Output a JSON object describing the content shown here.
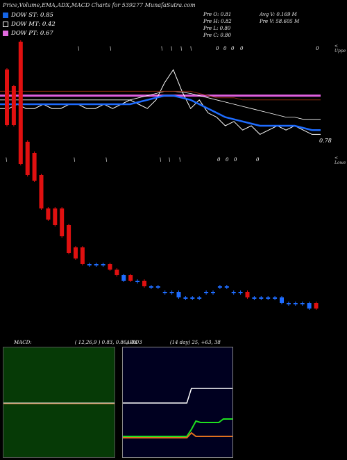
{
  "header": {
    "title": "Price,Volume,EMA,ADX,MACD Charts for 539277 MunafaSutra.com"
  },
  "legend": [
    {
      "label": "DOW ST: 0.85",
      "color": "#1565e6"
    },
    {
      "label": "DOW MT: 0.42",
      "color": "#000000"
    },
    {
      "label": "DOW PT: 0.67",
      "color": "#e26be0"
    }
  ],
  "prev": {
    "open": "Pre   O: 0.81",
    "high": "Pre   H: 0.82",
    "low": "Pre   L: 0.80",
    "close": "Pre   C: 0.80"
  },
  "volume_info": {
    "avg": "Avg V: 0.169 M",
    "prev": "Pre   V: 58.605 M"
  },
  "tags": {
    "upper": "< Uppe",
    "lower": "< Lowe"
  },
  "markers": {
    "top": [
      "\\",
      "\\",
      "\\",
      "\\",
      "\\",
      "\\",
      "0",
      "0",
      "0",
      "0",
      "0"
    ],
    "mid": [
      "\\",
      "\\",
      "\\",
      "\\",
      "\\",
      "\\",
      "0",
      "0",
      "0",
      "0"
    ]
  },
  "price_label": "0.78",
  "colors": {
    "blue": "#1e6cff",
    "pink": "#e060e0",
    "brown": "#8b2a10",
    "white": "#ffffff",
    "up": "#1e6cff",
    "down": "#e01010"
  },
  "chart_data": [
    {
      "type": "line",
      "name": "price_ema",
      "series": [
        {
          "values": [
            0.84,
            0.84,
            0.85,
            0.84,
            0.84,
            0.85,
            0.84,
            0.84,
            0.85,
            0.85,
            0.84,
            0.84,
            0.85,
            0.84,
            0.85,
            0.86,
            0.85,
            0.84,
            0.86,
            0.9,
            0.93,
            0.88,
            0.84,
            0.86,
            0.83,
            0.82,
            0.8,
            0.81,
            0.79,
            0.8,
            0.78,
            0.79,
            0.8,
            0.79,
            0.8,
            0.79,
            0.78,
            0.78
          ]
        },
        {
          "values": [
            0.85,
            0.85,
            0.85,
            0.85,
            0.85,
            0.85,
            0.85,
            0.85,
            0.85,
            0.85,
            0.85,
            0.85,
            0.85,
            0.85,
            0.85,
            0.85,
            0.855,
            0.86,
            0.865,
            0.87,
            0.87,
            0.865,
            0.86,
            0.85,
            0.84,
            0.83,
            0.82,
            0.815,
            0.81,
            0.805,
            0.8,
            0.8,
            0.8,
            0.8,
            0.8,
            0.795,
            0.79,
            0.79
          ]
        },
        {
          "values": [
            0.86,
            0.86,
            0.86,
            0.86,
            0.86,
            0.86,
            0.86,
            0.86,
            0.86,
            0.86,
            0.86,
            0.86,
            0.86,
            0.86,
            0.86,
            0.86,
            0.865,
            0.87,
            0.875,
            0.88,
            0.88,
            0.878,
            0.875,
            0.87,
            0.865,
            0.86,
            0.855,
            0.85,
            0.845,
            0.84,
            0.835,
            0.83,
            0.825,
            0.82,
            0.82,
            0.815,
            0.815,
            0.815
          ]
        },
        {
          "values": [
            0.88,
            0.88,
            0.88,
            0.88,
            0.88,
            0.88,
            0.88,
            0.88,
            0.88,
            0.88,
            0.88,
            0.88,
            0.88,
            0.88,
            0.88,
            0.88,
            0.88,
            0.88,
            0.88,
            0.88,
            0.88,
            0.88,
            0.88,
            0.875,
            0.87,
            0.865,
            0.865,
            0.865,
            0.86,
            0.86,
            0.86,
            0.86,
            0.86,
            0.86,
            0.86,
            0.86,
            0.86,
            0.86
          ]
        }
      ],
      "pink_level": 0.87
    },
    {
      "type": "bar",
      "name": "candles",
      "candles": [
        {
          "o": 0.815,
          "c": 0.825,
          "d": 1
        },
        {
          "o": 0.815,
          "c": 0.822,
          "d": 1
        },
        {
          "o": 0.808,
          "c": 0.83,
          "d": 1
        },
        {
          "o": 0.806,
          "c": 0.812,
          "d": 1
        },
        {
          "o": 0.805,
          "c": 0.81,
          "d": 1
        },
        {
          "o": 0.8,
          "c": 0.806,
          "d": 1
        },
        {
          "o": 0.798,
          "c": 0.8,
          "d": 1
        },
        {
          "o": 0.797,
          "c": 0.8,
          "d": 1
        },
        {
          "o": 0.795,
          "c": 0.8,
          "d": 1
        },
        {
          "o": 0.792,
          "c": 0.797,
          "d": 1
        },
        {
          "o": 0.791,
          "c": 0.793,
          "d": 1
        },
        {
          "o": 0.79,
          "c": 0.793,
          "d": 1
        },
        {
          "o": 0.79,
          "c": 0.79,
          "d": 0
        },
        {
          "o": 0.79,
          "c": 0.79,
          "d": 0
        },
        {
          "o": 0.79,
          "c": 0.79,
          "d": 0
        },
        {
          "o": 0.789,
          "c": 0.79,
          "d": 1
        },
        {
          "o": 0.788,
          "c": 0.789,
          "d": 1
        },
        {
          "o": 0.787,
          "c": 0.788,
          "d": 0
        },
        {
          "o": 0.787,
          "c": 0.788,
          "d": 1
        },
        {
          "o": 0.787,
          "c": 0.787,
          "d": 0
        },
        {
          "o": 0.786,
          "c": 0.787,
          "d": 1
        },
        {
          "o": 0.786,
          "c": 0.786,
          "d": 0
        },
        {
          "o": 0.786,
          "c": 0.786,
          "d": 0
        },
        {
          "o": 0.785,
          "c": 0.785,
          "d": 0
        },
        {
          "o": 0.785,
          "c": 0.785,
          "d": 0
        },
        {
          "o": 0.784,
          "c": 0.785,
          "d": 0
        },
        {
          "o": 0.784,
          "c": 0.784,
          "d": 0
        },
        {
          "o": 0.784,
          "c": 0.784,
          "d": 0
        },
        {
          "o": 0.784,
          "c": 0.784,
          "d": 0
        },
        {
          "o": 0.785,
          "c": 0.785,
          "d": 0
        },
        {
          "o": 0.785,
          "c": 0.785,
          "d": 0
        },
        {
          "o": 0.786,
          "c": 0.786,
          "d": 0
        },
        {
          "o": 0.786,
          "c": 0.786,
          "d": 0
        },
        {
          "o": 0.785,
          "c": 0.785,
          "d": 0
        },
        {
          "o": 0.785,
          "c": 0.785,
          "d": 0
        },
        {
          "o": 0.784,
          "c": 0.785,
          "d": 1
        },
        {
          "o": 0.784,
          "c": 0.784,
          "d": 0
        },
        {
          "o": 0.784,
          "c": 0.784,
          "d": 0
        },
        {
          "o": 0.784,
          "c": 0.784,
          "d": 0
        },
        {
          "o": 0.784,
          "c": 0.784,
          "d": 0
        },
        {
          "o": 0.783,
          "c": 0.784,
          "d": 0
        },
        {
          "o": 0.783,
          "c": 0.783,
          "d": 0
        },
        {
          "o": 0.783,
          "c": 0.783,
          "d": 0
        },
        {
          "o": 0.783,
          "c": 0.783,
          "d": 0
        },
        {
          "o": 0.782,
          "c": 0.783,
          "d": 0
        },
        {
          "o": 0.782,
          "c": 0.783,
          "d": 1
        }
      ],
      "ylim": [
        0.78,
        0.835
      ]
    },
    {
      "type": "line",
      "name": "macd",
      "header": "MACD:",
      "params": "( 12,26,9 ) 0.83,  0.86,  -0.03",
      "values": [
        0.0,
        0.0,
        0.0,
        0.0,
        0.0,
        0.0,
        0.0,
        0.0,
        0.0,
        0.0,
        0.0,
        0.0,
        0.0,
        0.0,
        0.0,
        0.0,
        0.0,
        0.0,
        0.0,
        0.0
      ]
    },
    {
      "type": "line",
      "name": "adx",
      "header": "ADX",
      "params": "(14  day) 25,  +63,  38",
      "series": [
        {
          "values": [
            0,
            0,
            0,
            0,
            0,
            0,
            0,
            0,
            0,
            0,
            0,
            0,
            0,
            0,
            0,
            60,
            60,
            60,
            60,
            60,
            60,
            60,
            60,
            60,
            60
          ]
        },
        {
          "values": [
            0,
            0,
            0,
            0,
            0,
            0,
            0,
            0,
            0,
            0,
            0,
            0,
            0,
            0,
            0,
            10,
            22,
            20,
            20,
            20,
            20,
            20,
            25,
            25,
            25
          ]
        },
        {
          "values": [
            0,
            0,
            0,
            0,
            0,
            0,
            0,
            0,
            0,
            0,
            0,
            0,
            0,
            0,
            0,
            7,
            2,
            2,
            2,
            2,
            2,
            2,
            2,
            2,
            2
          ]
        }
      ]
    }
  ]
}
